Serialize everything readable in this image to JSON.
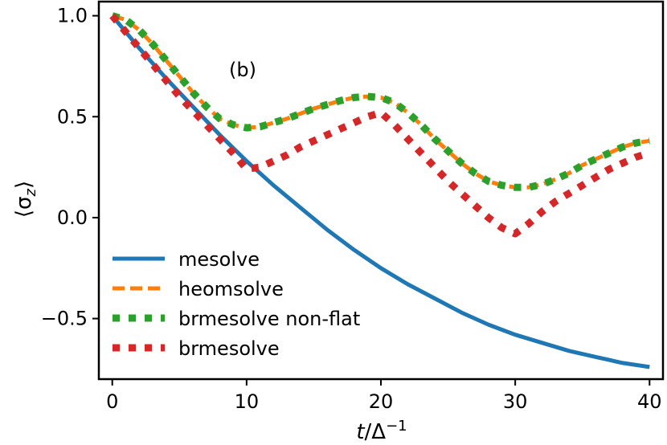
{
  "chart_data": {
    "type": "line",
    "annotation": "(b)",
    "xlabel_main": "t",
    "xlabel_rest": "/Δ",
    "xlabel_sup": "−1",
    "ylabel": "⟨σ",
    "ylabel_sub": "z",
    "ylabel_close": "⟩",
    "xlim": [
      -1,
      41
    ],
    "ylim": [
      -0.8,
      1.07
    ],
    "xticks": [
      0,
      10,
      20,
      30,
      40
    ],
    "xtick_labels": [
      "0",
      "10",
      "20",
      "30",
      "40"
    ],
    "yticks": [
      1.0,
      0.5,
      0.0,
      -0.5
    ],
    "ytick_labels": [
      "1.0",
      "0.5",
      "0.0",
      "−0.5"
    ],
    "legend_position": "lower-left",
    "series": [
      {
        "name": "mesolve",
        "color": "#1f77b4",
        "style": "solid",
        "x": [
          0,
          2,
          4,
          6,
          8,
          10,
          12,
          14,
          16,
          18,
          20,
          22,
          24,
          26,
          28,
          30,
          32,
          34,
          36,
          38,
          40
        ],
        "y": [
          1.0,
          0.84,
          0.69,
          0.55,
          0.41,
          0.28,
          0.16,
          0.05,
          -0.06,
          -0.16,
          -0.25,
          -0.33,
          -0.4,
          -0.47,
          -0.53,
          -0.58,
          -0.62,
          -0.66,
          -0.69,
          -0.72,
          -0.74
        ]
      },
      {
        "name": "heomsolve",
        "color": "#ff7f0e",
        "style": "dashed",
        "x": [
          0,
          1,
          2,
          3,
          4,
          5,
          6,
          7,
          8,
          9,
          10,
          11,
          12,
          13,
          14,
          15,
          16,
          17,
          18,
          19,
          20,
          21,
          22,
          23,
          24,
          25,
          26,
          27,
          28,
          29,
          30,
          31,
          32,
          33,
          34,
          35,
          36,
          37,
          38,
          39,
          40
        ],
        "y": [
          1.0,
          0.98,
          0.93,
          0.86,
          0.78,
          0.7,
          0.62,
          0.55,
          0.49,
          0.46,
          0.445,
          0.45,
          0.47,
          0.49,
          0.515,
          0.54,
          0.56,
          0.58,
          0.595,
          0.6,
          0.595,
          0.57,
          0.52,
          0.46,
          0.39,
          0.33,
          0.27,
          0.22,
          0.18,
          0.16,
          0.15,
          0.15,
          0.165,
          0.19,
          0.22,
          0.26,
          0.29,
          0.32,
          0.35,
          0.37,
          0.38
        ]
      },
      {
        "name": "brmesolve non-flat",
        "color": "#2ca02c",
        "style": "dotted",
        "x": [
          0,
          1,
          2,
          3,
          4,
          5,
          6,
          7,
          8,
          9,
          10,
          11,
          12,
          13,
          14,
          15,
          16,
          17,
          18,
          19,
          20,
          21,
          22,
          23,
          24,
          25,
          26,
          27,
          28,
          29,
          30,
          31,
          32,
          33,
          34,
          35,
          36,
          37,
          38,
          39,
          40
        ],
        "y": [
          1.0,
          0.98,
          0.93,
          0.86,
          0.78,
          0.7,
          0.62,
          0.55,
          0.49,
          0.46,
          0.445,
          0.45,
          0.47,
          0.49,
          0.515,
          0.54,
          0.56,
          0.58,
          0.595,
          0.6,
          0.595,
          0.57,
          0.52,
          0.46,
          0.39,
          0.33,
          0.27,
          0.22,
          0.18,
          0.16,
          0.15,
          0.15,
          0.165,
          0.19,
          0.22,
          0.26,
          0.29,
          0.32,
          0.35,
          0.37,
          0.38
        ]
      },
      {
        "name": "brmesolve",
        "color": "#d62728",
        "style": "dotted",
        "x": [
          0,
          1,
          2,
          3,
          4,
          5,
          6,
          7,
          8,
          9,
          10,
          11,
          12,
          13,
          14,
          15,
          16,
          17,
          18,
          19,
          20,
          21,
          22,
          23,
          24,
          25,
          26,
          27,
          28,
          29,
          30,
          31,
          32,
          33,
          34,
          35,
          36,
          37,
          38,
          39,
          40
        ],
        "y": [
          1.0,
          0.92,
          0.84,
          0.76,
          0.68,
          0.6,
          0.53,
          0.46,
          0.39,
          0.32,
          0.24,
          0.25,
          0.28,
          0.31,
          0.35,
          0.38,
          0.41,
          0.44,
          0.47,
          0.5,
          0.52,
          0.46,
          0.39,
          0.32,
          0.25,
          0.18,
          0.12,
          0.06,
          0.0,
          -0.05,
          -0.08,
          -0.03,
          0.03,
          0.08,
          0.12,
          0.16,
          0.2,
          0.24,
          0.27,
          0.3,
          0.32
        ]
      }
    ]
  }
}
